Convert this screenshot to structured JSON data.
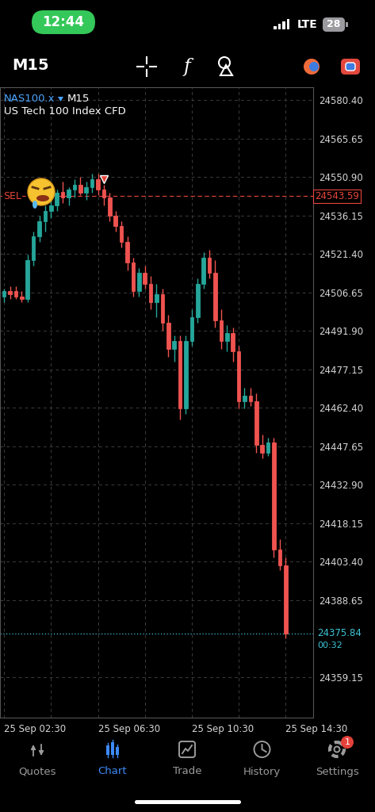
{
  "status_bar": {
    "time": "12:44",
    "network": "LTE",
    "battery": 28
  },
  "toolbar": {
    "timeframe": "M15",
    "indicator_icon": "f"
  },
  "chart_data": {
    "type": "candlestick",
    "symbol": "NAS100.x",
    "timeframe": "M15",
    "title": "US Tech 100 Index CFD",
    "categories": [
      "25 Sep 02:30",
      null,
      null,
      null,
      null,
      null,
      null,
      null,
      null,
      null,
      null,
      null,
      null,
      null,
      null,
      null,
      "25 Sep 06:30",
      null,
      null,
      null,
      null,
      null,
      null,
      null,
      null,
      null,
      null,
      null,
      null,
      null,
      null,
      null,
      "25 Sep 10:30",
      null,
      null,
      null,
      null,
      null,
      null,
      null,
      null,
      null,
      null,
      null,
      null,
      null,
      null,
      null,
      "25 Sep 14:30"
    ],
    "open": [
      24505,
      24507,
      24507,
      24505,
      24504,
      24519,
      24528,
      24534,
      24538,
      24540,
      24545,
      24543,
      24546,
      24548,
      24545,
      24547,
      24550,
      24546,
      24543,
      24536,
      24532,
      24526,
      24518,
      24507,
      24514,
      24510,
      24503,
      24506,
      24495,
      24485,
      24488,
      24462,
      24488,
      24497,
      24510,
      24520,
      24514,
      24496,
      24488,
      24491,
      24484,
      24465,
      24467,
      24465,
      24448,
      24445,
      24449,
      24408,
      24402
    ],
    "high": [
      24508,
      24509,
      24509,
      24507,
      24521,
      24530,
      24536,
      24540,
      24543,
      24546,
      24549,
      24547,
      24550,
      24551,
      24549,
      24552,
      24552,
      24548,
      24545,
      24538,
      24534,
      24528,
      24520,
      24516,
      24517,
      24513,
      24510,
      24508,
      24498,
      24490,
      24490,
      24490,
      24500,
      24512,
      24522,
      24523,
      24519,
      24500,
      24494,
      24493,
      24486,
      24470,
      24470,
      24468,
      24452,
      24451,
      24451,
      24412,
      24405
    ],
    "low": [
      24503,
      24504,
      24504,
      24503,
      24503,
      24517,
      24526,
      24530,
      24535,
      24538,
      24541,
      24540,
      24543,
      24544,
      24542,
      24545,
      24544,
      24540,
      24534,
      24530,
      24524,
      24515,
      24505,
      24505,
      24508,
      24500,
      24497,
      24492,
      24482,
      24480,
      24458,
      24460,
      24486,
      24495,
      24508,
      24512,
      24493,
      24485,
      24484,
      24480,
      24462,
      24462,
      24463,
      24445,
      24443,
      24444,
      24405,
      24400,
      24374
    ],
    "close": [
      24507,
      24506,
      24505,
      24504,
      24519,
      24528,
      24534,
      24538,
      24540,
      24545,
      24543,
      24546,
      24548,
      24545,
      24547,
      24550,
      24546,
      24543,
      24536,
      24532,
      24526,
      24518,
      24507,
      24514,
      24510,
      24503,
      24506,
      24495,
      24485,
      24488,
      24462,
      24488,
      24497,
      24510,
      24520,
      24514,
      24496,
      24488,
      24491,
      24484,
      24465,
      24467,
      24465,
      24448,
      24445,
      24449,
      24408,
      24402,
      24375.84
    ],
    "color": {
      "up": "#26a69a",
      "down": "#ef5350"
    },
    "xlim": [
      -0.7,
      52.7
    ],
    "ylim": [
      24343.5,
      24585.3
    ],
    "yticks": [
      {
        "value": 24580.4,
        "label": "24580.40"
      },
      {
        "value": 24565.65,
        "label": "24565.65"
      },
      {
        "value": 24550.9,
        "label": "24550.90"
      },
      {
        "value": 24536.15,
        "label": "24536.15"
      },
      {
        "value": 24521.4,
        "label": "24521.40"
      },
      {
        "value": 24506.65,
        "label": "24506.65"
      },
      {
        "value": 24491.9,
        "label": "24491.90"
      },
      {
        "value": 24477.15,
        "label": "24477.15"
      },
      {
        "value": 24462.4,
        "label": "24462.40"
      },
      {
        "value": 24447.65,
        "label": "24447.65"
      },
      {
        "value": 24432.9,
        "label": "24432.90"
      },
      {
        "value": 24418.15,
        "label": "24418.15"
      },
      {
        "value": 24403.4,
        "label": "24403.40"
      },
      {
        "value": 24388.65,
        "label": "24388.65"
      },
      {
        "value": 24359.15,
        "label": "24359.15"
      }
    ],
    "grid": true,
    "sell_line": {
      "value": 24543.59,
      "label": "SEL",
      "color": "#e8453c"
    },
    "sell_entry": {
      "index": 17,
      "value": 24550
    },
    "current_price": {
      "value": 24375.84,
      "timer": "00:32",
      "color": "#3fc6d9"
    }
  },
  "nav_bar": {
    "items": [
      "Quotes",
      "Chart",
      "Trade",
      "History",
      "Settings"
    ],
    "active": "Chart",
    "badge": 1
  }
}
